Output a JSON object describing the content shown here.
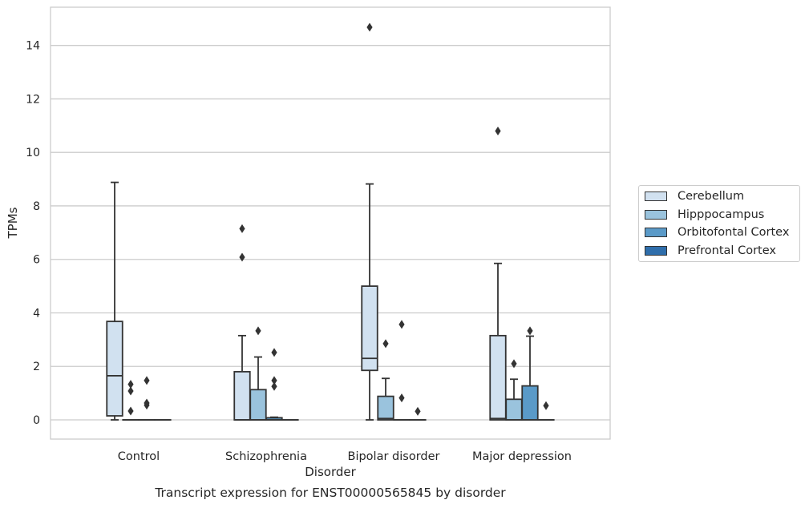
{
  "caption": "Transcript expression for ENST00000565845 by disorder",
  "chart_data": {
    "type": "box",
    "xlabel": "Disorder",
    "ylabel": "TPMs",
    "ylim": [
      -0.7,
      15.4
    ],
    "yticks": [
      0,
      2,
      4,
      6,
      8,
      10,
      12,
      14
    ],
    "grid": "horizontal",
    "legend_position": "right",
    "categories": [
      "Control",
      "Schizophrenia",
      "Bipolar disorder",
      "Major depression"
    ],
    "series": [
      {
        "name": "Cerebellum",
        "color": "#d1e1f0",
        "boxes": [
          {
            "whisker_low": 0,
            "q1": 0.15,
            "median": 1.65,
            "q3": 3.68,
            "whisker_high": 8.88,
            "outliers": []
          },
          {
            "whisker_low": 0,
            "q1": 0,
            "median": 0,
            "q3": 1.8,
            "whisker_high": 3.15,
            "outliers": [
              6.08,
              7.15
            ]
          },
          {
            "whisker_low": 0,
            "q1": 1.85,
            "median": 2.3,
            "q3": 5.0,
            "whisker_high": 8.82,
            "outliers": [
              14.68
            ]
          },
          {
            "whisker_low": 0,
            "q1": 0,
            "median": 0.05,
            "q3": 3.15,
            "whisker_high": 5.85,
            "outliers": [
              10.8
            ]
          }
        ]
      },
      {
        "name": "Hipppocampus",
        "color": "#9ac3dd",
        "boxes": [
          {
            "whisker_low": 0,
            "q1": 0,
            "median": 0,
            "q3": 0,
            "whisker_high": 0,
            "outliers": [
              0.33,
              1.08,
              1.33
            ]
          },
          {
            "whisker_low": 0,
            "q1": 0,
            "median": 0,
            "q3": 1.13,
            "whisker_high": 2.35,
            "outliers": [
              3.33
            ]
          },
          {
            "whisker_low": 0,
            "q1": 0,
            "median": 0.05,
            "q3": 0.88,
            "whisker_high": 1.55,
            "outliers": [
              2.85
            ]
          },
          {
            "whisker_low": 0,
            "q1": 0,
            "median": 0,
            "q3": 0.77,
            "whisker_high": 1.52,
            "outliers": [
              2.1
            ]
          }
        ]
      },
      {
        "name": "Orbitofontal Cortex",
        "color": "#5a9ac8",
        "boxes": [
          {
            "whisker_low": 0,
            "q1": 0,
            "median": 0,
            "q3": 0,
            "whisker_high": 0,
            "outliers": [
              0.55,
              0.63,
              1.47
            ]
          },
          {
            "whisker_low": 0,
            "q1": 0,
            "median": 0,
            "q3": 0.08,
            "whisker_high": 0.1,
            "outliers": [
              1.25,
              1.47,
              2.52
            ]
          },
          {
            "whisker_low": 0,
            "q1": 0,
            "median": 0,
            "q3": 0,
            "whisker_high": 0,
            "outliers": [
              0.82,
              3.57
            ]
          },
          {
            "whisker_low": 0,
            "q1": 0,
            "median": 0,
            "q3": 1.27,
            "whisker_high": 3.13,
            "outliers": [
              3.33
            ]
          }
        ]
      },
      {
        "name": "Prefrontal Cortex",
        "color": "#2f6eab",
        "boxes": [
          {
            "whisker_low": 0,
            "q1": 0,
            "median": 0,
            "q3": 0,
            "whisker_high": 0,
            "outliers": []
          },
          {
            "whisker_low": 0,
            "q1": 0,
            "median": 0,
            "q3": 0,
            "whisker_high": 0,
            "outliers": []
          },
          {
            "whisker_low": 0,
            "q1": 0,
            "median": 0,
            "q3": 0,
            "whisker_high": 0,
            "outliers": [
              0.32
            ]
          },
          {
            "whisker_low": 0,
            "q1": 0,
            "median": 0,
            "q3": 0,
            "whisker_high": 0,
            "outliers": [
              0.53
            ]
          }
        ]
      }
    ]
  }
}
